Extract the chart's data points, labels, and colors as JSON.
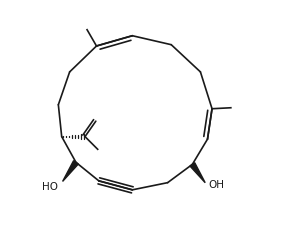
{
  "figsize": [
    2.88,
    2.39
  ],
  "dpi": 100,
  "bg_color": "#ffffff",
  "ring_color": "#1a1a1a",
  "line_width": 1.2
}
